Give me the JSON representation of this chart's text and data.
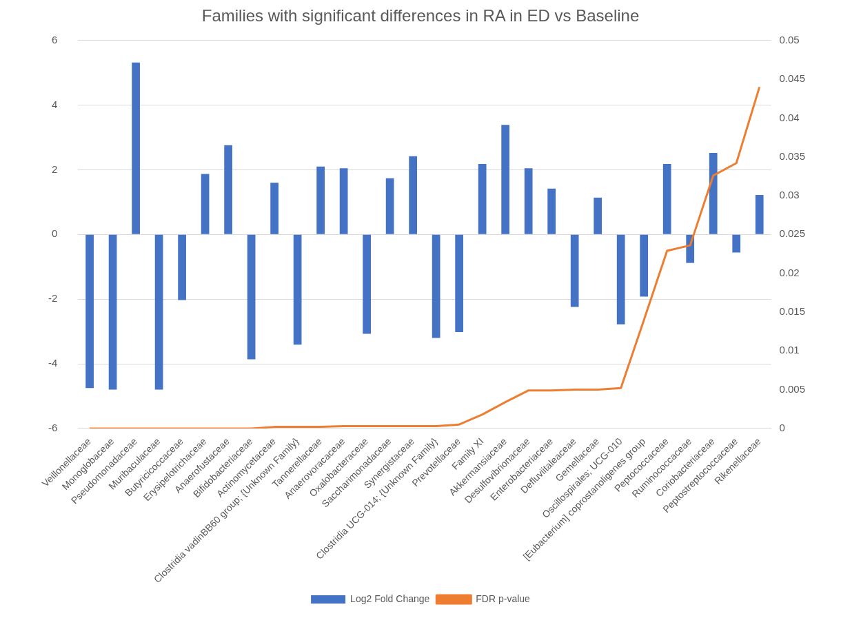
{
  "chart_data": {
    "type": "bar",
    "title": "Families with significant differences in RA in ED vs Baseline",
    "categories": [
      "Veillonellaceae",
      "Monoglobaceae",
      "Pseudomonadaceae",
      "Muribaculaceae",
      "Butyricicoccaceae",
      "Erysipelotrichaceae",
      "Anaerofustaceae",
      "Bifidobacteriaceae",
      "Actinomycetaceae",
      "Clostridia vadinBB60 group; {Unknown Family}",
      "Tannerellaceae",
      "Anaerovoracaceae",
      "Oxalobacteraceae",
      "Saccharimonadaceae",
      "Synergistaceae",
      "Clostridia UCG-014; {Unknown Family}",
      "Prevotellaceae",
      "Family XI",
      "Akkermansiaceae",
      "Desulfovibrionaceae",
      "Enterobacteriaceae",
      "Defluviitaleaceae",
      "Gemellaceae",
      "Oscillospirales; UCG-010",
      "[Eubacterium] coprostanoligenes group",
      "Peptococcaceae",
      "Ruminococcaceae",
      "Coriobacteriaceae",
      "Peptostreptococcaceae",
      "Rikenellaceae"
    ],
    "series": [
      {
        "name": "Log2 Fold Change",
        "color": "#4472c4",
        "values": [
          -4.75,
          -4.8,
          5.32,
          -4.8,
          -2.03,
          1.87,
          2.76,
          -3.86,
          1.6,
          -3.41,
          2.1,
          2.05,
          -3.07,
          1.74,
          2.42,
          -3.2,
          -3.02,
          2.18,
          3.39,
          2.05,
          1.42,
          -2.24,
          1.14,
          -2.78,
          -1.92,
          2.18,
          -0.88,
          2.52,
          -0.56,
          1.22
        ]
      },
      {
        "name": "FDR p-value",
        "type": "line",
        "axis": "y2",
        "color": "#ed7d31",
        "values": [
          0,
          0,
          0,
          0,
          0,
          0,
          0,
          0,
          0.0002,
          0.0002,
          0.0002,
          0.0003,
          0.0003,
          0.0003,
          0.0003,
          0.0003,
          0.0005,
          0.0018,
          0.0034,
          0.0049,
          0.0049,
          0.005,
          0.005,
          0.0052,
          0.014,
          0.0229,
          0.0236,
          0.0326,
          0.0342,
          0.044
        ]
      }
    ],
    "ylim": [
      -6,
      6
    ],
    "yticks": [
      -6,
      -4,
      -2,
      0,
      2,
      4,
      6
    ],
    "y2lim": [
      0,
      0.05
    ],
    "y2ticks": [
      0,
      0.005,
      0.01,
      0.015,
      0.02,
      0.025,
      0.03,
      0.035,
      0.04,
      0.045,
      0.05
    ],
    "grid": "y",
    "legend": "bottom",
    "marker": "none",
    "line_style": "solid"
  }
}
